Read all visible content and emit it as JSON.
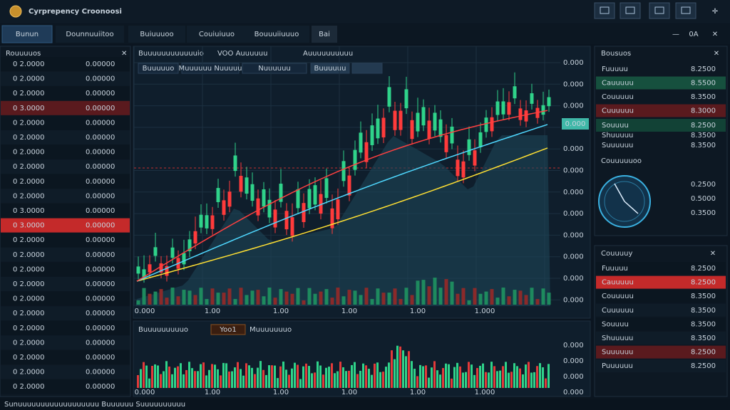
{
  "header": {
    "title": "Cyrprepency Croonoosi",
    "tabs": [
      "Bunun",
      "Dounnuuiitoo",
      "Buiuuuoo",
      "Couiuiuuo",
      "Bouuuiiuuuo",
      "Bai"
    ]
  },
  "left_panel": {
    "title": "Rouuuuos",
    "rows": [
      [
        "0 2.0000",
        "0.00000",
        "#3ddc84"
      ],
      [
        "0 2.0000",
        "0.00000",
        "#3ddc84"
      ],
      [
        "0 2.0000",
        "0.00000",
        "#ffffff"
      ],
      [
        "0 3.0000",
        "0.00000",
        "#ff6b6b"
      ],
      [
        "0 2.0000",
        "0.00000",
        "#3ddc84"
      ],
      [
        "0 2.0000",
        "0.00000",
        "#3ddc84"
      ],
      [
        "0 2.0000",
        "0.00000",
        "#3ddc84"
      ],
      [
        "0 2.0000",
        "0.00000",
        "#ff4d4d"
      ],
      [
        "0 2.0000",
        "0.00000",
        "#3ddc84"
      ],
      [
        "0 2.0000",
        "0.00000",
        "#3ddc84"
      ],
      [
        "0 3.0000",
        "0.00000",
        "#3ddc84"
      ],
      [
        "0 3.0000",
        "0.00000",
        "#ffffff"
      ],
      [
        "0 2.0000",
        "0.00000",
        "#3ddc84"
      ],
      [
        "0 2.0000",
        "0.00000",
        "#3ddc84"
      ],
      [
        "0 2.0000",
        "0.00000",
        "#3ddc84"
      ],
      [
        "0 2.0000",
        "0.00000",
        "#ff4d4d"
      ],
      [
        "0 2.0000",
        "0.00000",
        "#3ddc84"
      ],
      [
        "0 2.0000",
        "0.00000",
        "#3ddc84"
      ],
      [
        "0 2.0000",
        "0.00000",
        "#ff4d4d"
      ],
      [
        "0 2.0000",
        "0.00000",
        "#3ddc84"
      ],
      [
        "0 2.0000",
        "0.00000",
        "#3ddc84"
      ],
      [
        "0 2.0000",
        "0.00000",
        "#3ddc84"
      ],
      [
        "0 2.0000",
        "0.00000",
        "#3ddc84"
      ]
    ]
  },
  "price_chart": {
    "title": "Buuuuuuuuuuuuio",
    "tags": [
      "VOO Auuuuuu",
      "Auuuuuuuuuu"
    ],
    "chips": [
      "Buuuuuo",
      "Muuuuuu Nuuuuu",
      "Nuuuuuu",
      "Buuuuuu"
    ],
    "yticks": [
      "0.000",
      "0.000",
      "0.000",
      "0.000",
      "0.000",
      "0.000",
      "0.000",
      "0.000",
      "0.000",
      "0.000",
      "0.000",
      "0.000"
    ],
    "xticks": [
      "0.000",
      "1.00",
      "1.00",
      "1.00",
      "1.00",
      "1.000"
    ],
    "price_tag": "0.000"
  },
  "volume_chart": {
    "title": "Buuuuuuuuuo",
    "tags": [
      "Yoo1",
      "Muuuuuuuo"
    ],
    "yticks": [
      "0.000",
      "0.000",
      "0.000",
      "0.000"
    ],
    "xticks": [
      "0.000",
      "1.00",
      "1.00",
      "1.00",
      "1.00",
      "1.000"
    ]
  },
  "right_top": {
    "title": "Bousuos",
    "rows": [
      [
        "Fuuuuu",
        "8.2500"
      ],
      [
        "Cauuuuu",
        "8.5500"
      ],
      [
        "Couuuuu",
        "8.3500"
      ],
      [
        "Cuuuuuu",
        "8.3000"
      ],
      [
        "Souuuu",
        "8.2500"
      ],
      [
        "Shuuuuu",
        "8.3500"
      ],
      [
        "Suuuuuu",
        "8.3500"
      ]
    ],
    "gauge_title": "Couuuuuoo",
    "gauge_values": [
      "0.2500",
      "0.5000",
      "0.3500"
    ]
  },
  "right_bottom": {
    "title": "Couuuuy",
    "rows": [
      [
        "Fuuuuu",
        "8.2500"
      ],
      [
        "Cauuuuu",
        "8.2500"
      ],
      [
        "Couuuuu",
        "8.3500"
      ],
      [
        "Cuuuuuu",
        "8.3500"
      ],
      [
        "Souuuu",
        "8.3500"
      ],
      [
        "Shuuuuu",
        "8.3500"
      ],
      [
        "Suuuuuu",
        "8.2500"
      ],
      [
        "Puuuuuu",
        "8.2500"
      ]
    ]
  },
  "footer": {
    "text": "Sunuuuuuuuuuuuuuuuuuu Buuuuuu Suuuuuuuuuu"
  }
}
